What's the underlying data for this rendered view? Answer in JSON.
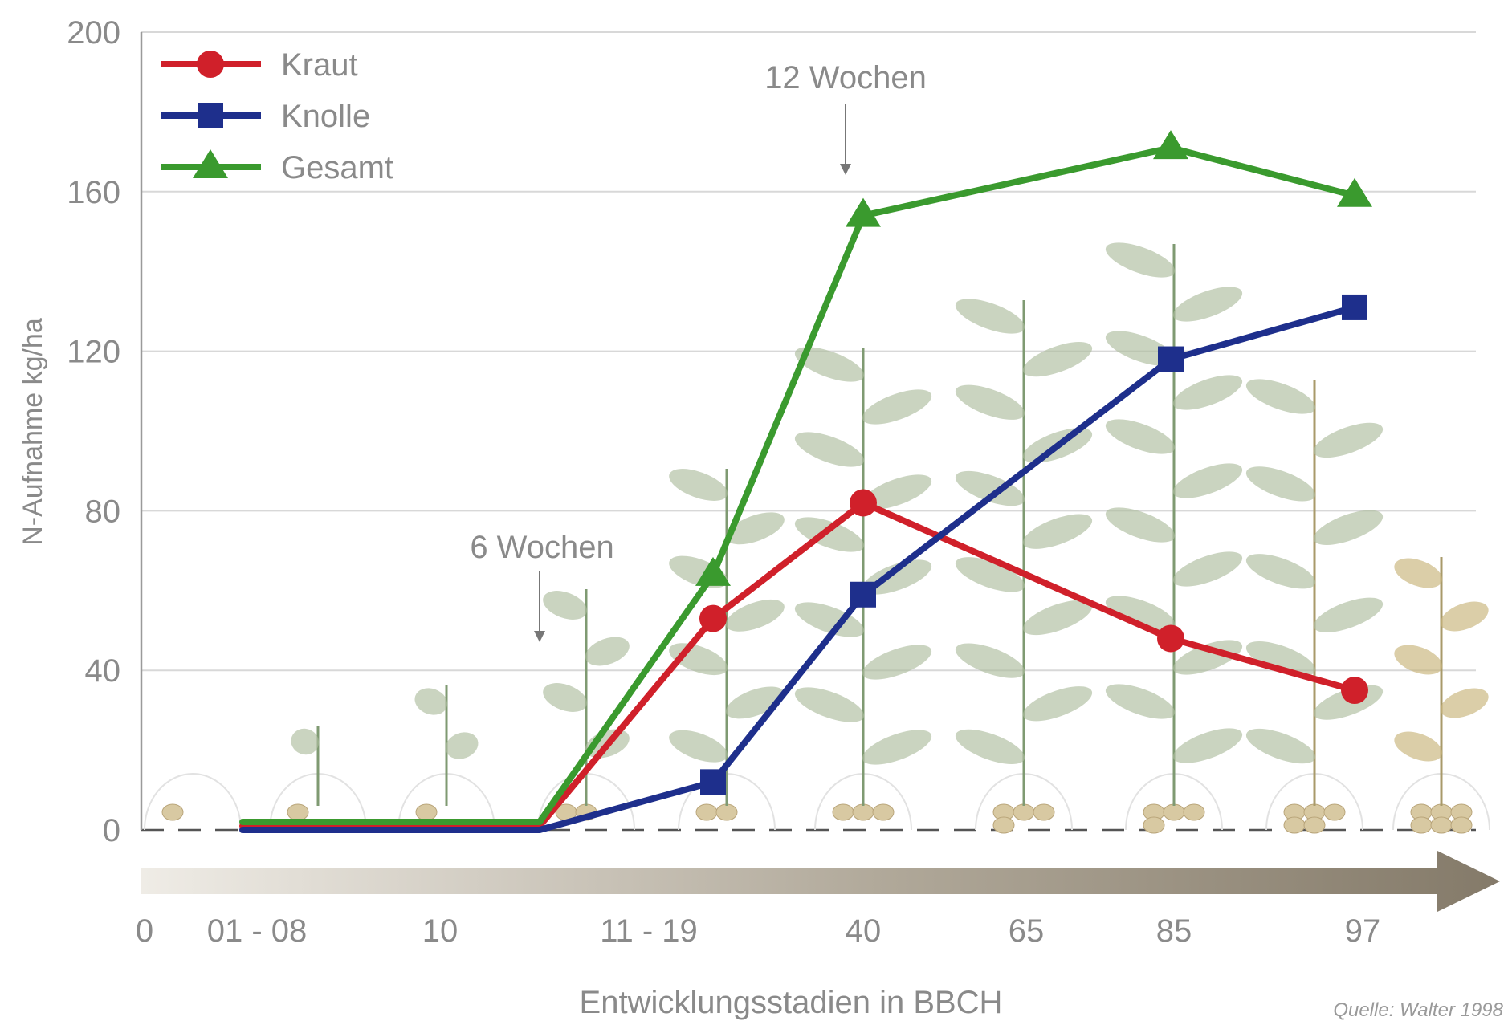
{
  "chart_data": {
    "type": "line",
    "title": "",
    "xlabel": "Entwicklungsstadien in BBCH",
    "ylabel": "N-Aufnahme kg/ha",
    "ylim": [
      0,
      200
    ],
    "yticks": [
      0,
      40,
      80,
      120,
      160,
      200
    ],
    "x_stage_labels": [
      "0",
      "01 - 08",
      "10",
      "11 - 19",
      "40",
      "65",
      "85",
      "97"
    ],
    "grid": "horizontal",
    "legend_position": "top-left",
    "series": [
      {
        "name": "Kraut",
        "color": "#d0202a",
        "marker": "circle",
        "points": [
          {
            "x": "01 - 08",
            "y": 1
          },
          {
            "x": "11 - 19",
            "y": 1
          },
          {
            "x": "11 - 19",
            "y": 53
          },
          {
            "x": "40",
            "y": 82
          },
          {
            "x": "85",
            "y": 48
          },
          {
            "x": "97",
            "y": 35
          }
        ]
      },
      {
        "name": "Knolle",
        "color": "#1e2f8c",
        "marker": "square",
        "points": [
          {
            "x": "01 - 08",
            "y": 0
          },
          {
            "x": "11 - 19",
            "y": 0
          },
          {
            "x": "11 - 19",
            "y": 12
          },
          {
            "x": "40",
            "y": 59
          },
          {
            "x": "85",
            "y": 118
          },
          {
            "x": "97",
            "y": 131
          }
        ]
      },
      {
        "name": "Gesamt",
        "color": "#3a9a2e",
        "marker": "triangle",
        "points": [
          {
            "x": "01 - 08",
            "y": 2
          },
          {
            "x": "11 - 19",
            "y": 2
          },
          {
            "x": "11 - 19",
            "y": 64
          },
          {
            "x": "40",
            "y": 154
          },
          {
            "x": "85",
            "y": 171
          },
          {
            "x": "97",
            "y": 159
          }
        ]
      }
    ],
    "annotations": [
      {
        "text": "6 Wochen",
        "x": "11 - 19",
        "y": 3,
        "arrow": "down"
      },
      {
        "text": "12 Wochen",
        "x": "40",
        "y": 156,
        "arrow": "down"
      }
    ],
    "source": "Quelle: Walter 1998"
  }
}
